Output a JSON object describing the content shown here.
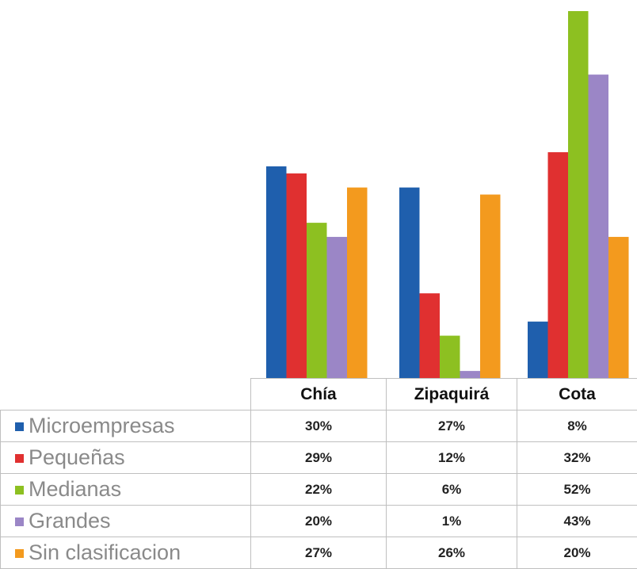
{
  "chart_data": {
    "type": "bar",
    "categories": [
      "Chía",
      "Zipaquirá",
      "Cota"
    ],
    "series": [
      {
        "name": "Microempresas",
        "color": "#1f5fad",
        "values": [
          30,
          27,
          8
        ],
        "labels": [
          "30%",
          "27%",
          "8%"
        ]
      },
      {
        "name": "Pequeñas",
        "color": "#e03030",
        "values": [
          29,
          12,
          32
        ],
        "labels": [
          "29%",
          "12%",
          "32%"
        ]
      },
      {
        "name": "Medianas",
        "color": "#8dc021",
        "values": [
          22,
          6,
          52
        ],
        "labels": [
          "22%",
          "6%",
          "52%"
        ]
      },
      {
        "name": "Grandes",
        "color": "#9b86c6",
        "values": [
          20,
          1,
          43
        ],
        "labels": [
          "20%",
          "1%",
          "43%"
        ]
      },
      {
        "name": "Sin clasificacion",
        "color": "#f39a1e",
        "values": [
          27,
          26,
          20
        ],
        "labels": [
          "27%",
          "26%",
          "20%"
        ]
      }
    ],
    "ylim": [
      0,
      52
    ],
    "grid": false,
    "legend": "table-left"
  }
}
